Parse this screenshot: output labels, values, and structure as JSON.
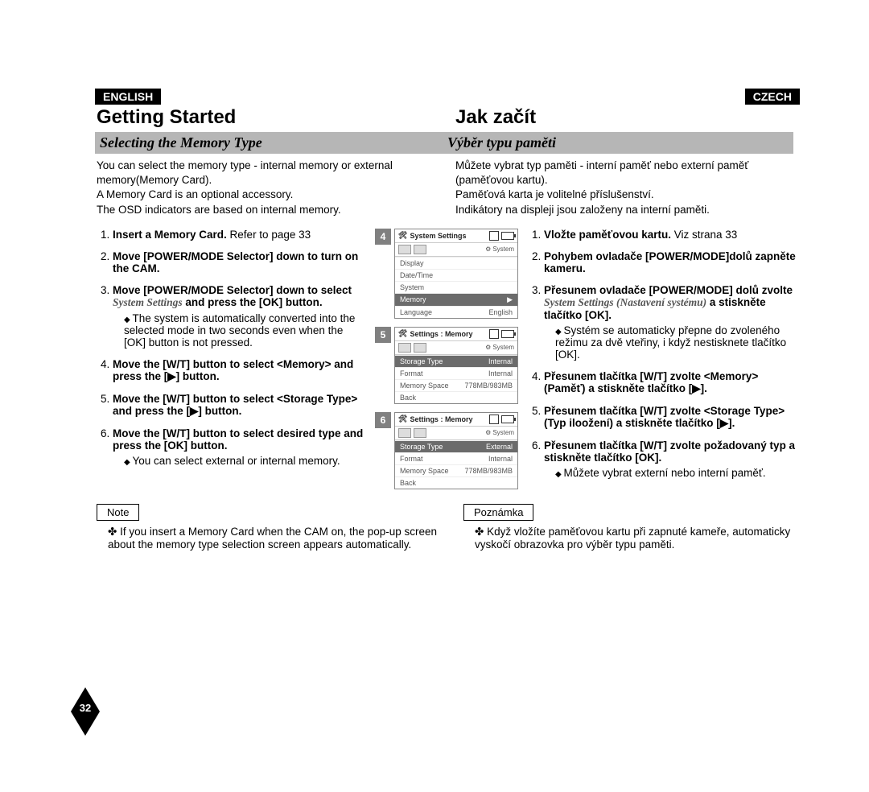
{
  "lang": {
    "left": "ENGLISH",
    "right": "CZECH"
  },
  "title": {
    "left": "Getting Started",
    "right": "Jak začít"
  },
  "subtitle": {
    "left": "Selecting the Memory Type",
    "right": "Výběr typu paměti"
  },
  "intro": {
    "left": "You can select the memory type - internal memory or external memory(Memory Card).\nA Memory Card is an optional accessory.\nThe OSD indicators are based on internal memory.",
    "right": "Můžete vybrat typ paměti - interní paměť nebo externí paměť (paměťovou kartu).\nPaměťová karta je volitelné příslušenství.\nIndikátory na displeji jsou založeny na interní paměti."
  },
  "steps_left": [
    {
      "b": "Insert a Memory Card.",
      "t": " Refer to page 33"
    },
    {
      "b": "Move [POWER/MODE Selector] down to turn on the CAM.",
      "t": ""
    },
    {
      "b": "Move [POWER/MODE Selector] down to select ",
      "em": "System Settings",
      "b2": " and press the [OK] button.",
      "sub": "The system is automatically converted into the selected mode in two seconds even when the [OK] button is not pressed."
    },
    {
      "b": "Move the [W/T] button to select <Memory> and press the [▶] button.",
      "t": ""
    },
    {
      "b": "Move the [W/T] button to select <Storage Type> and press the [▶] button.",
      "t": ""
    },
    {
      "b": "Move the [W/T] button to select desired type and press the [OK] button.",
      "t": "",
      "sub": "You can select external or internal memory."
    }
  ],
  "steps_right": [
    {
      "b": "Vložte paměťovou kartu.",
      "t": " Viz strana 33"
    },
    {
      "b": "Pohybem ovladače [POWER/MODE]dolů zapněte kameru.",
      "t": ""
    },
    {
      "b": "Přesunem ovladače [POWER/MODE] dolů zvolte ",
      "em": "System Settings (Nastavení systému)",
      "b2": " a stiskněte tlačítko [OK].",
      "sub": "Systém se automaticky přepne do zvoleného režimu za dvě vteřiny, i když nestisknete tlačítko [OK]."
    },
    {
      "b": "Přesunem tlačítka [W/T] zvolte <Memory> (Paměť) a stiskněte tlačítko [▶].",
      "t": ""
    },
    {
      "b": "Přesunem tlačítka [W/T] zvolte <Storage Type> (Typ iloožení) a stiskněte tlačítko [▶].",
      "t": ""
    },
    {
      "b": "Přesunem tlačítka [W/T] zvolte požadovaný typ a stiskněte tlačítko [OK].",
      "t": "",
      "sub": "Můžete vybrat externí nebo interní paměť."
    }
  ],
  "osd": [
    {
      "badge": "4",
      "title": "System Settings",
      "rows": [
        {
          "l": "Display",
          "r": ""
        },
        {
          "l": "Date/Time",
          "r": ""
        },
        {
          "l": "System",
          "r": ""
        },
        {
          "l": "Memory",
          "r": "▶",
          "sel": true
        },
        {
          "l": "Language",
          "r": "English"
        }
      ]
    },
    {
      "badge": "5",
      "title": "Settings : Memory",
      "rows": [
        {
          "l": "Storage Type",
          "r": "Internal",
          "sel": true
        },
        {
          "l": "Format",
          "r": "Internal"
        },
        {
          "l": "Memory Space",
          "r": "778MB/983MB"
        },
        {
          "l": "Back",
          "r": ""
        }
      ]
    },
    {
      "badge": "6",
      "title": "Settings : Memory",
      "rows": [
        {
          "l": "Storage Type",
          "r": "External",
          "sel": true
        },
        {
          "l": "Format",
          "r": "Internal"
        },
        {
          "l": "Memory Space",
          "r": "778MB/983MB"
        },
        {
          "l": "Back",
          "r": ""
        }
      ]
    }
  ],
  "note": {
    "left_label": "Note",
    "right_label": "Poznámka",
    "left_text": "If you insert a Memory Card when the CAM on, the pop-up screen about the memory type selection screen appears automatically.",
    "right_text": "Když vložíte paměťovou kartu při zapnuté kameře, automaticky vyskočí obrazovka pro výběr typu paměti."
  },
  "page_number": "32",
  "osd_system_label": "System"
}
